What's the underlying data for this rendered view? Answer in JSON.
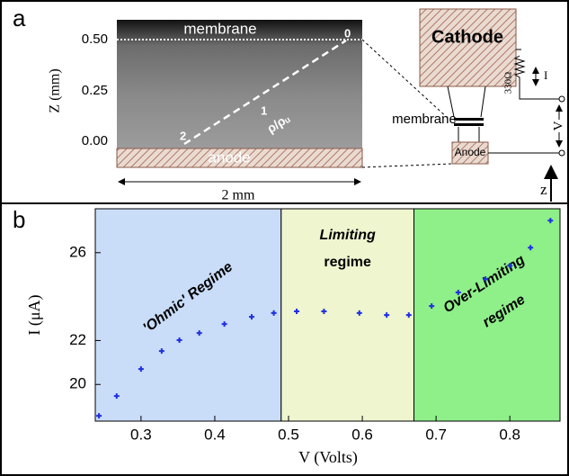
{
  "panel_a": {
    "label": "a",
    "top_label": "membrane",
    "z_ticks": [
      "0.50",
      "0.25",
      "0.00"
    ],
    "z_label": "Z (mm)",
    "line_marks": [
      "0",
      "1",
      "2"
    ],
    "rho_label": "ρ/ρᵤ",
    "anode_label": "anode",
    "width_label": "2 mm",
    "cathode": "Cathode",
    "membrane": "membrane",
    "anode": "Anode",
    "resistor": "330Ω",
    "current": "I",
    "voltage": "V",
    "z_axis": "z"
  },
  "chart_data": {
    "type": "scatter",
    "panel_label": "b",
    "x_label": "V (Volts)",
    "y_label": "I (μA)",
    "xlim": [
      0.238,
      0.868
    ],
    "ylim": [
      18.33,
      28.0
    ],
    "xticks": [
      0.3,
      0.4,
      0.5,
      0.6,
      0.7,
      0.8
    ],
    "yticks": [
      20,
      22,
      26
    ],
    "regions": [
      {
        "lines": [
          "'Ohmic' Regime"
        ],
        "color": "#c9dcf8",
        "xrange": [
          0.238,
          0.49
        ]
      },
      {
        "lines": [
          "Limiting",
          "regime"
        ],
        "color": "#eef5cf",
        "xrange": [
          0.49,
          0.67
        ]
      },
      {
        "lines": [
          "Over-Limiting",
          "regime"
        ],
        "color": "#8ff08a",
        "xrange": [
          0.67,
          0.868
        ]
      }
    ],
    "x": [
      0.243,
      0.267,
      0.3,
      0.328,
      0.352,
      0.379,
      0.413,
      0.45,
      0.48,
      0.511,
      0.548,
      0.596,
      0.633,
      0.663,
      0.694,
      0.73,
      0.767,
      0.8,
      0.828,
      0.855
    ],
    "series": [
      {
        "name": "I",
        "color": "#1f2fe0",
        "values": [
          18.57,
          19.47,
          20.7,
          21.52,
          22.02,
          22.34,
          22.75,
          23.08,
          23.25,
          23.33,
          23.33,
          23.25,
          23.16,
          23.16,
          23.57,
          24.19,
          24.8,
          25.41,
          26.23,
          27.46
        ]
      }
    ]
  }
}
